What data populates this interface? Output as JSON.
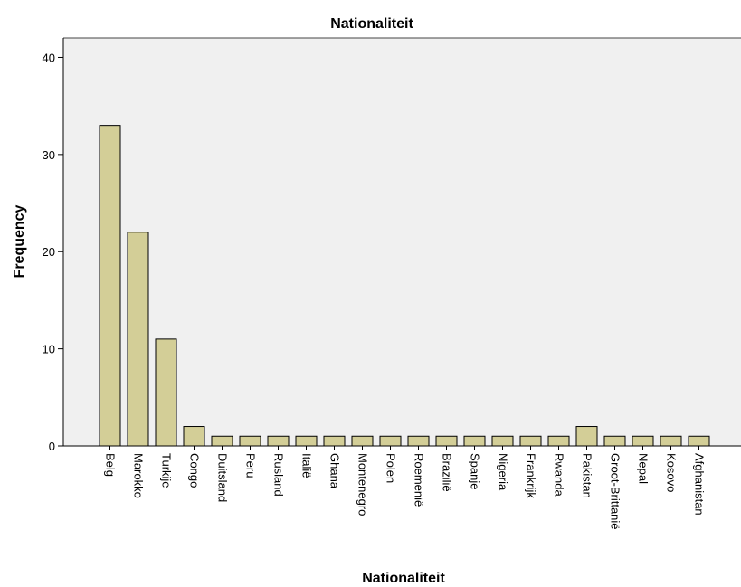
{
  "chart_data": {
    "type": "bar",
    "title": "Nationaliteit",
    "xlabel": "Nationaliteit",
    "ylabel": "Frequency",
    "ylim": [
      0,
      42
    ],
    "yticks": [
      0,
      10,
      20,
      30,
      40
    ],
    "grid": false,
    "categories": [
      "Belg",
      "Marokko",
      "Turkije",
      "Congo",
      "Duitsland",
      "Peru",
      "Rusland",
      "Italië",
      "Ghana",
      "Montenegro",
      "Polen",
      "Roemenië",
      "Brazilië",
      "Spanje",
      "Nigeria",
      "Frankrijk",
      "Rwanda",
      "Pakistan",
      "Groot-Brittanië",
      "Nepal",
      "Kosovo",
      "Afghanistan"
    ],
    "values": [
      33,
      22,
      11,
      2,
      1,
      1,
      1,
      1,
      1,
      1,
      1,
      1,
      1,
      1,
      1,
      1,
      1,
      2,
      1,
      1,
      1,
      1
    ],
    "colors": {
      "bar_fill": "#d3ce97",
      "bar_stroke": "#000000",
      "plot_background": "#f0f0f0",
      "axis": "#000000"
    }
  }
}
